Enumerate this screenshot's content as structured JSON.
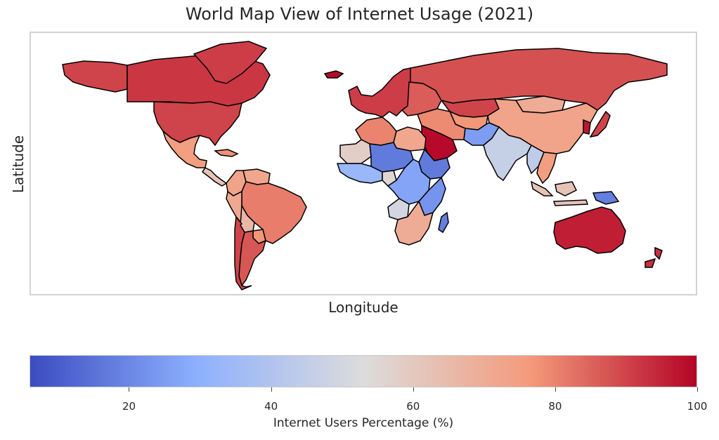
{
  "title": "World Map View of Internet Usage (2021)",
  "xlabel": "Longitude",
  "ylabel": "Latitude",
  "colorbar": {
    "label": "Internet Users Percentage (%)",
    "range": [
      6,
      100
    ],
    "ticks": [
      "20",
      "40",
      "60",
      "80",
      "100"
    ],
    "colormap": "coolwarm",
    "colors": {
      "low": "#3b4cc0",
      "mid": "#dddcdc",
      "high": "#b40426"
    }
  },
  "regions": [
    {
      "region": "United States",
      "value": 90
    },
    {
      "region": "Canada",
      "value": 92
    },
    {
      "region": "Greenland",
      "value": 91
    },
    {
      "region": "Alaska",
      "value": 90
    },
    {
      "region": "Mexico",
      "value": 75
    },
    {
      "region": "Central America",
      "value": 62
    },
    {
      "region": "Caribbean",
      "value": 78
    },
    {
      "region": "Colombia",
      "value": 73
    },
    {
      "region": "Venezuela",
      "value": 72
    },
    {
      "region": "Brazil",
      "value": 81
    },
    {
      "region": "Peru",
      "value": 71
    },
    {
      "region": "Bolivia",
      "value": 66
    },
    {
      "region": "Paraguay",
      "value": 77
    },
    {
      "region": "Argentina",
      "value": 87
    },
    {
      "region": "Chile",
      "value": 90
    },
    {
      "region": "Iceland",
      "value": 99
    },
    {
      "region": "Western Europe",
      "value": 91
    },
    {
      "region": "Eastern Europe",
      "value": 86
    },
    {
      "region": "Russia",
      "value": 88
    },
    {
      "region": "Kazakhstan",
      "value": 90
    },
    {
      "region": "Central Asia",
      "value": 77
    },
    {
      "region": "China",
      "value": 73
    },
    {
      "region": "Mongolia",
      "value": 70
    },
    {
      "region": "Japan",
      "value": 90
    },
    {
      "region": "Korea",
      "value": 97
    },
    {
      "region": "Saudi Arabia / Gulf",
      "value": 99
    },
    {
      "region": "Iran / Middle East",
      "value": 79
    },
    {
      "region": "Pakistan / Afghanistan",
      "value": 25
    },
    {
      "region": "India",
      "value": 46
    },
    {
      "region": "Southeast Asia",
      "value": 75
    },
    {
      "region": "Myanmar / Laos",
      "value": 44
    },
    {
      "region": "Indonesia",
      "value": 62
    },
    {
      "region": "Papua New Guinea",
      "value": 18
    },
    {
      "region": "Australia",
      "value": 96
    },
    {
      "region": "New Zealand",
      "value": 93
    },
    {
      "region": "Morocco / Algeria",
      "value": 80
    },
    {
      "region": "Egypt / Libya",
      "value": 72
    },
    {
      "region": "Western Sahara / Mauritania",
      "value": 58
    },
    {
      "region": "West Africa",
      "value": 33
    },
    {
      "region": "Nigeria",
      "value": 55
    },
    {
      "region": "Sahel",
      "value": 17
    },
    {
      "region": "Ethiopia",
      "value": 17
    },
    {
      "region": "East Africa",
      "value": 23
    },
    {
      "region": "Central Africa",
      "value": 27
    },
    {
      "region": "Angola",
      "value": 50
    },
    {
      "region": "Southern Africa",
      "value": 70
    },
    {
      "region": "Madagascar",
      "value": 18
    }
  ]
}
